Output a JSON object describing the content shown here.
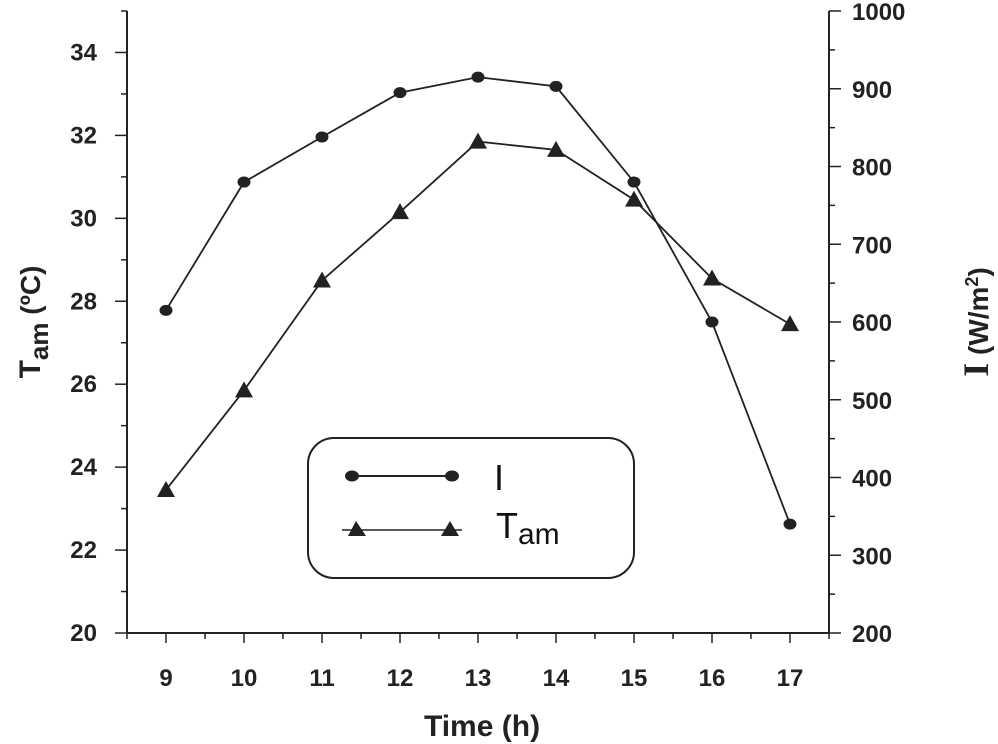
{
  "chart_data": {
    "type": "line",
    "xlabel": "Time (h)",
    "y_left_label_main": "T",
    "y_left_label_sub": "am",
    "y_left_label_unit": " (ºC)",
    "y_right_label_main": "I",
    "y_right_label_unit": " (W/m",
    "y_right_label_sup": "2",
    "y_right_label_close": ")",
    "x": [
      9,
      10,
      11,
      12,
      13,
      14,
      15,
      16,
      17
    ],
    "xlim": [
      8.5,
      17.5
    ],
    "ylim_left": [
      20,
      35
    ],
    "ylim_right": [
      200,
      1000
    ],
    "yticks_left": [
      "20",
      "22",
      "24",
      "26",
      "28",
      "30",
      "32",
      "34"
    ],
    "yticks_right": [
      "200",
      "300",
      "400",
      "500",
      "600",
      "700",
      "800",
      "900",
      "1000"
    ],
    "xticks": [
      "9",
      "10",
      "11",
      "12",
      "13",
      "14",
      "15",
      "16",
      "17"
    ],
    "series": [
      {
        "name": "I",
        "axis": "right",
        "marker": "circle",
        "values": [
          615,
          780,
          838,
          895,
          915,
          903,
          780,
          600,
          340
        ]
      },
      {
        "name": "T",
        "name_sub": "am",
        "axis": "left",
        "marker": "triangle",
        "values": [
          23.45,
          25.85,
          28.5,
          30.15,
          31.85,
          31.65,
          30.45,
          28.55,
          27.45
        ]
      }
    ],
    "legend": "center-bottom",
    "grid": false,
    "line_color": "#222222"
  }
}
